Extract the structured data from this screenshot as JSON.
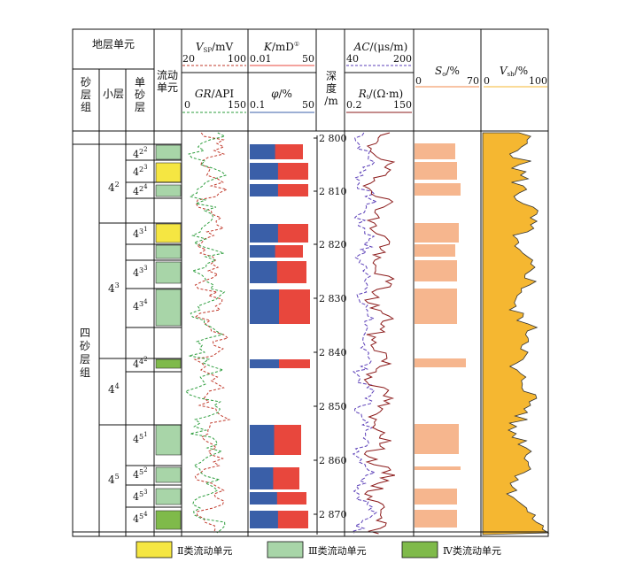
{
  "headers": {
    "strat_unit": "地层单元",
    "sand_group": [
      "砂",
      "层",
      "组"
    ],
    "sub_layer": "小层",
    "single_sand": [
      "单",
      "砂",
      "层"
    ],
    "flow_unit": [
      "流动",
      "单元"
    ],
    "depth": [
      "深",
      "度",
      "/m"
    ]
  },
  "track1": {
    "vsp_label": "V",
    "vsp_sub": "SP",
    "vsp_unit": "/mV",
    "vsp_min": "20",
    "vsp_max": "100",
    "gr_label": "GR",
    "gr_unit": "/API",
    "gr_min": "0",
    "gr_max": "150"
  },
  "track2": {
    "k_label": "K",
    "k_unit": "/mD",
    "k_note": "①",
    "k_min": "0.01",
    "k_max": "50",
    "phi_label": "φ",
    "phi_unit": "/%",
    "phi_min": "0.1",
    "phi_max": "50"
  },
  "track3": {
    "ac_label": "AC",
    "ac_unit": "/(μs/m)",
    "ac_min": "40",
    "ac_max": "200",
    "rt_label": "R",
    "rt_sub": "t",
    "rt_unit": "/(Ω·m)",
    "rt_min": "0.2",
    "rt_max": "150"
  },
  "track4": {
    "so_label": "S",
    "so_sub": "o",
    "so_unit": "/%",
    "so_min": "0",
    "so_max": "70"
  },
  "track5": {
    "vsh_label": "V",
    "vsh_sub": "sh",
    "vsh_unit": "/%",
    "vsh_min": "0",
    "vsh_max": "100"
  },
  "sand_group_name": [
    "四",
    "砂",
    "层",
    "组"
  ],
  "sub_layers": [
    {
      "base": "4",
      "sup": "2"
    },
    {
      "base": "4",
      "sup": "3"
    },
    {
      "base": "4",
      "sup": "4"
    },
    {
      "base": "4",
      "sup": "5"
    }
  ],
  "single_layers": [
    {
      "base": "4",
      "mid": "2",
      "sup": "2"
    },
    {
      "base": "4",
      "mid": "2",
      "sup": "3"
    },
    {
      "base": "4",
      "mid": "2",
      "sup": "4"
    },
    {
      "base": "4",
      "mid": "3",
      "sup": "1"
    },
    {
      "base": "4",
      "mid": "3",
      "sup": "3"
    },
    {
      "base": "4",
      "mid": "3",
      "sup": "4"
    },
    {
      "base": "4",
      "mid": "4",
      "sup": "2"
    },
    {
      "base": "4",
      "mid": "5",
      "sup": "1"
    },
    {
      "base": "4",
      "mid": "5",
      "sup": "2"
    },
    {
      "base": "4",
      "mid": "5",
      "sup": "3"
    },
    {
      "base": "4",
      "mid": "5",
      "sup": "4"
    }
  ],
  "depth_ticks": [
    "2 800",
    "2 810",
    "2 820",
    "2 830",
    "2 840",
    "2 850",
    "2 860",
    "2 870"
  ],
  "legend": [
    {
      "label": "Ⅱ类流动单元",
      "color": "#f5e642"
    },
    {
      "label": "Ⅲ类流动单元",
      "color": "#a8d5a8"
    },
    {
      "label": "Ⅳ类流动单元",
      "color": "#7fba4a"
    }
  ],
  "colors": {
    "vsp": "#c0392b",
    "gr": "#2e9e3e",
    "k": "#e8473d",
    "phi": "#3a5fa8",
    "ac": "#5b3fb8",
    "rt": "#8b1a1a",
    "so": "#f08a4b",
    "vsh": "#f5b731"
  }
}
